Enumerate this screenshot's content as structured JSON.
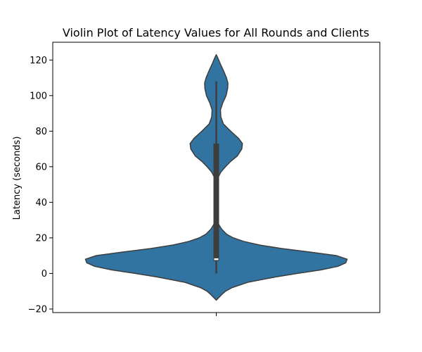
{
  "chart_data": {
    "type": "violin",
    "title": "Violin Plot of Latency Values for All Rounds and Clients",
    "ylabel": "Latency (seconds)",
    "xlabel": "",
    "ylim": [
      -22,
      130
    ],
    "yticks": [
      -20,
      0,
      20,
      40,
      60,
      80,
      100,
      120
    ],
    "grid": false,
    "series": [
      {
        "fill_color": "#3274a1",
        "edge_color": "#3d3d3d",
        "density_profile": [
          {
            "y": -15,
            "w": 0.0
          },
          {
            "y": -12,
            "w": 0.04
          },
          {
            "y": -10,
            "w": 0.07
          },
          {
            "y": -8,
            "w": 0.12
          },
          {
            "y": -5,
            "w": 0.24
          },
          {
            "y": -2,
            "w": 0.45
          },
          {
            "y": 0,
            "w": 0.62
          },
          {
            "y": 2,
            "w": 0.8
          },
          {
            "y": 4,
            "w": 0.93
          },
          {
            "y": 6,
            "w": 0.99
          },
          {
            "y": 8,
            "w": 1.0
          },
          {
            "y": 10,
            "w": 0.92
          },
          {
            "y": 12,
            "w": 0.72
          },
          {
            "y": 14,
            "w": 0.5
          },
          {
            "y": 16,
            "w": 0.33
          },
          {
            "y": 18,
            "w": 0.21
          },
          {
            "y": 20,
            "w": 0.13
          },
          {
            "y": 22,
            "w": 0.08
          },
          {
            "y": 25,
            "w": 0.04
          },
          {
            "y": 28,
            "w": 0.015
          },
          {
            "y": 31,
            "w": 0.005
          },
          {
            "y": 35,
            "w": 0.003
          },
          {
            "y": 40,
            "w": 0.003
          },
          {
            "y": 45,
            "w": 0.004
          },
          {
            "y": 50,
            "w": 0.006
          },
          {
            "y": 54,
            "w": 0.014
          },
          {
            "y": 57,
            "w": 0.035
          },
          {
            "y": 60,
            "w": 0.07
          },
          {
            "y": 63,
            "w": 0.11
          },
          {
            "y": 66,
            "w": 0.16
          },
          {
            "y": 70,
            "w": 0.195
          },
          {
            "y": 73,
            "w": 0.2
          },
          {
            "y": 76,
            "w": 0.17
          },
          {
            "y": 80,
            "w": 0.11
          },
          {
            "y": 84,
            "w": 0.055
          },
          {
            "y": 88,
            "w": 0.035
          },
          {
            "y": 92,
            "w": 0.032
          },
          {
            "y": 96,
            "w": 0.05
          },
          {
            "y": 100,
            "w": 0.075
          },
          {
            "y": 104,
            "w": 0.087
          },
          {
            "y": 107,
            "w": 0.089
          },
          {
            "y": 110,
            "w": 0.078
          },
          {
            "y": 114,
            "w": 0.055
          },
          {
            "y": 118,
            "w": 0.03
          },
          {
            "y": 121,
            "w": 0.013
          },
          {
            "y": 123,
            "w": 0.0
          }
        ],
        "box": {
          "whisker_low": 0,
          "q1": 7,
          "median": 8,
          "q3": 73,
          "whisker_high": 108
        }
      }
    ]
  }
}
